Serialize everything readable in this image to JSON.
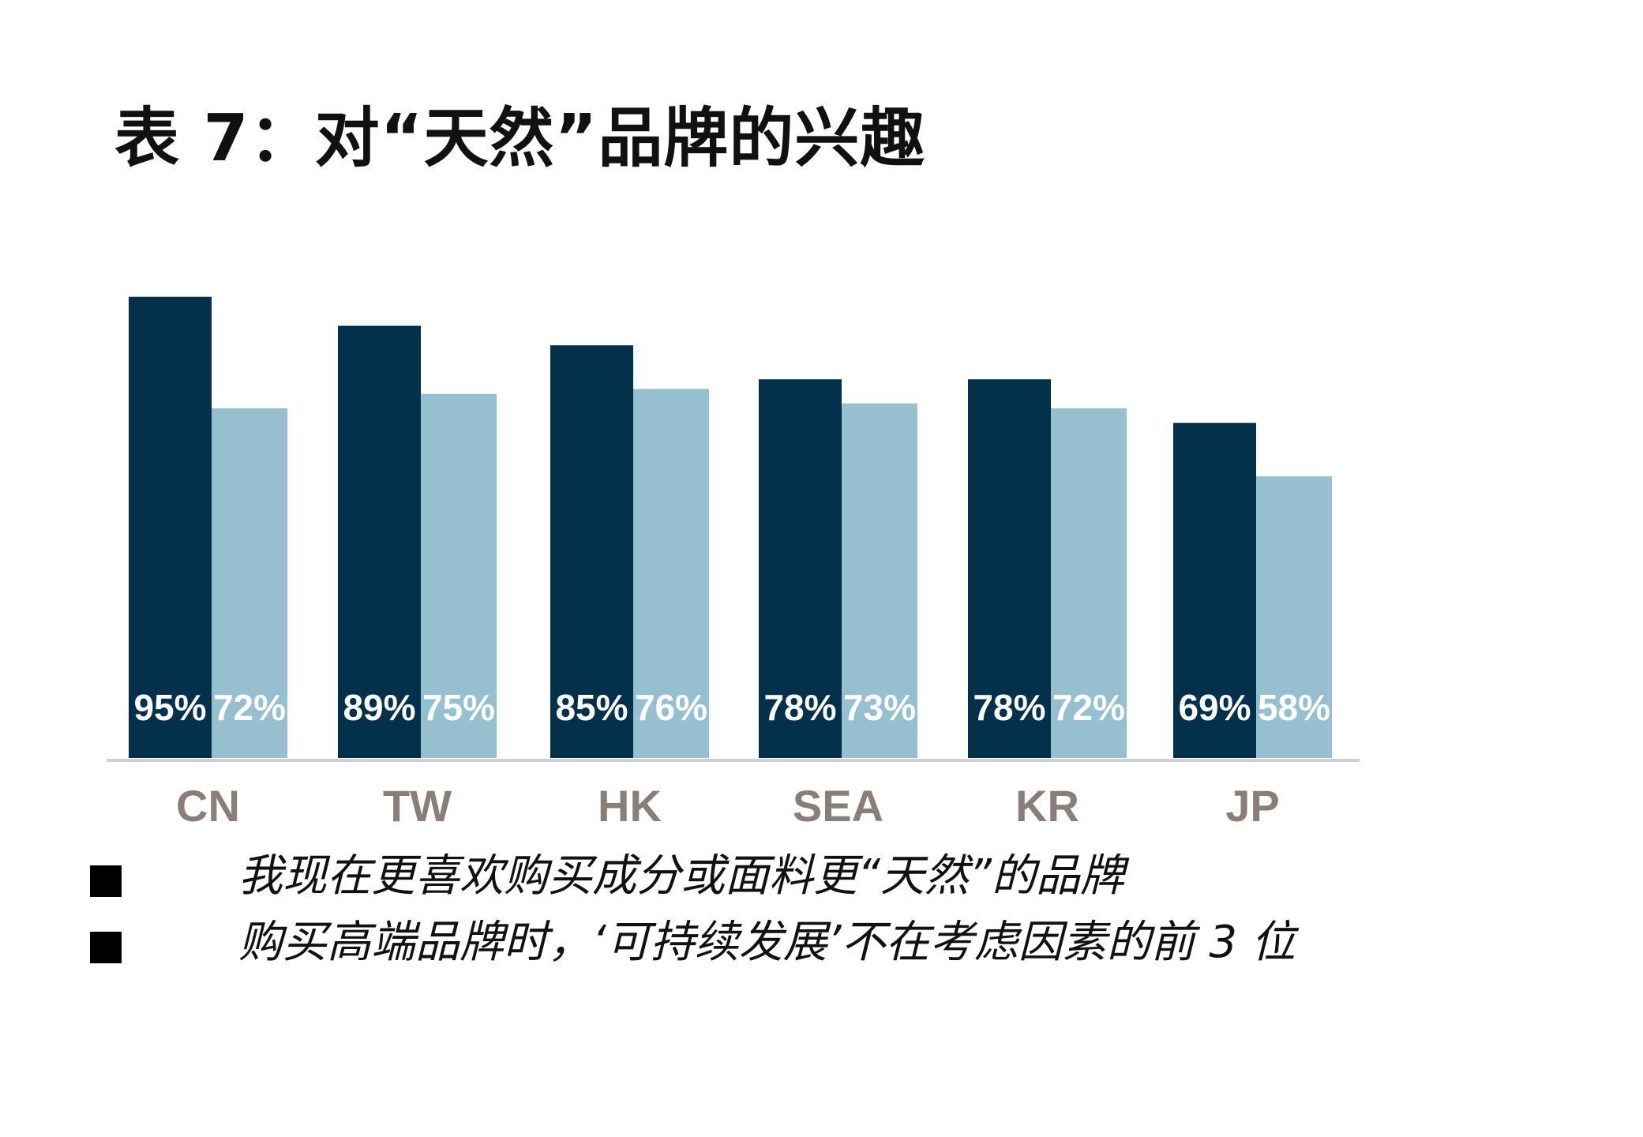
{
  "title": "表 7：对“天然”品牌的兴趣",
  "colors": {
    "series1": "#03314b",
    "series2": "#96bfd0",
    "axis": "#d0d0d0",
    "category_text": "#8a7f78",
    "legend_swatch": "#000000"
  },
  "chart_data": {
    "type": "bar",
    "categories": [
      "CN",
      "TW",
      "HK",
      "SEA",
      "KR",
      "JP"
    ],
    "series": [
      {
        "name": "我现在更喜欢购买成分或面料更“天然”的品牌",
        "values": [
          95,
          89,
          85,
          78,
          78,
          69
        ],
        "labels": [
          "95%",
          "89%",
          "85%",
          "78%",
          "78%",
          "69%"
        ]
      },
      {
        "name": "购买高端品牌时，‘可持续发展’不在考虑因素的前 3 位",
        "values": [
          72,
          75,
          76,
          73,
          72,
          58
        ],
        "labels": [
          "72%",
          "75%",
          "76%",
          "73%",
          "72%",
          "58%"
        ]
      }
    ],
    "ylim": [
      0,
      100
    ],
    "grid": false,
    "legend_position": "bottom"
  }
}
